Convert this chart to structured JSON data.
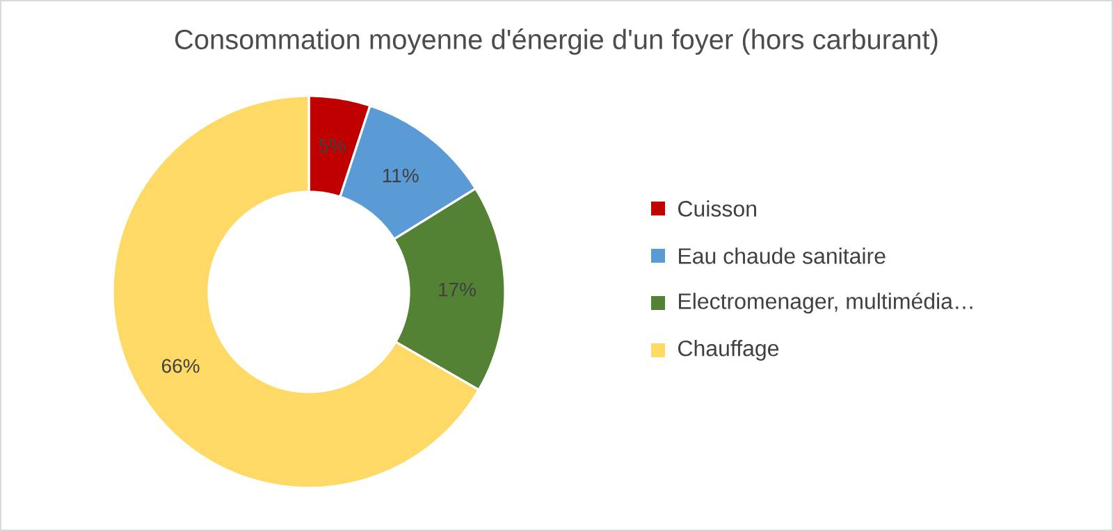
{
  "chart_data": {
    "type": "donut",
    "title": "Consommation moyenne d'énergie d'un foyer (hors carburant)",
    "categories": [
      "Cuisson",
      "Eau chaude sanitaire",
      "Electromenager, multimédia…",
      "Chauffage"
    ],
    "values": [
      5,
      11,
      17,
      66
    ],
    "value_labels": [
      "5%",
      "11%",
      "17%",
      "66%"
    ],
    "colors": [
      "#c00000",
      "#5b9bd5",
      "#548235",
      "#ffd966"
    ],
    "legend": "right"
  }
}
